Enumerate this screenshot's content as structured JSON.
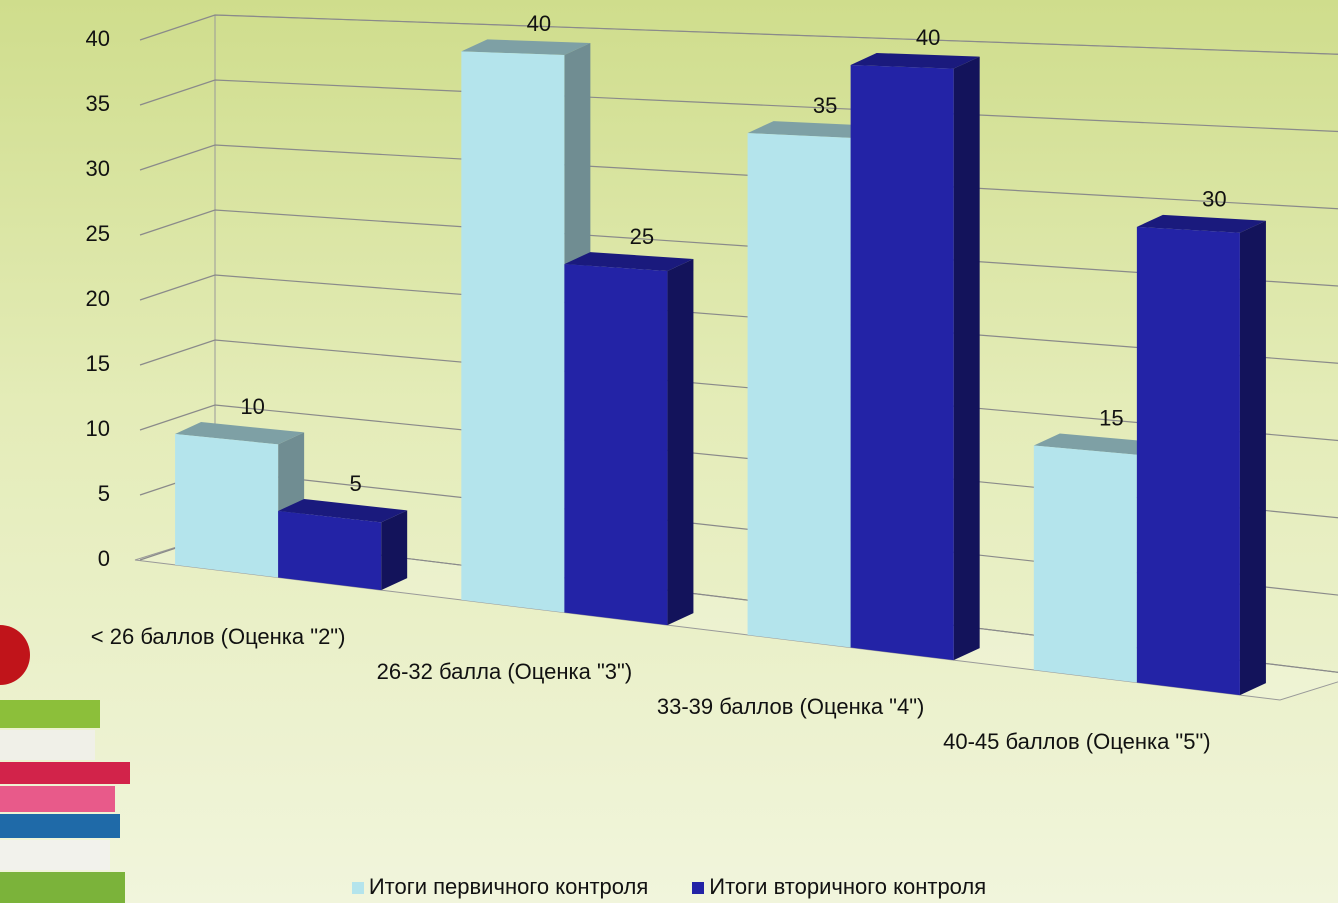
{
  "chart_data": {
    "type": "bar3d",
    "categories": [
      "< 26 баллов (Оценка \"2\")",
      "26-32 балла (Оценка \"3\")",
      "33-39 баллов (Оценка \"4\")",
      "40-45 баллов (Оценка \"5\")"
    ],
    "series": [
      {
        "name": "Итоги первичного контроля",
        "color": "#b4e4ec",
        "values": [
          10,
          40,
          35,
          15
        ]
      },
      {
        "name": "Итоги вторичного контроля",
        "color": "#2323a6",
        "values": [
          5,
          25,
          40,
          30
        ]
      }
    ],
    "ylim": [
      0,
      40
    ],
    "yticks": [
      0,
      5,
      10,
      15,
      20,
      25,
      30,
      35,
      40
    ],
    "grid": true,
    "legend": "bottom"
  }
}
